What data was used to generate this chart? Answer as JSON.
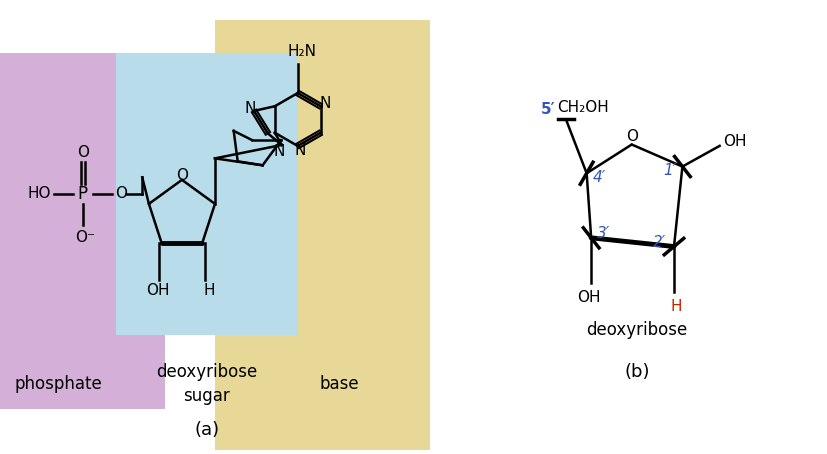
{
  "bg_color": "#ffffff",
  "phosphate_bg": "#d4b0d8",
  "sugar_bg": "#b8dcea",
  "base_bg": "#e8d898",
  "blue_color": "#3355bb",
  "red_color": "#cc2200",
  "black_color": "#111111",
  "phosphate_label": "phosphate",
  "sugar_label": "deoxyribose\nsugar",
  "base_label": "base",
  "panel_a_label": "(a)",
  "panel_b_label": "(b)",
  "deoxyribose_label": "deoxyribose"
}
